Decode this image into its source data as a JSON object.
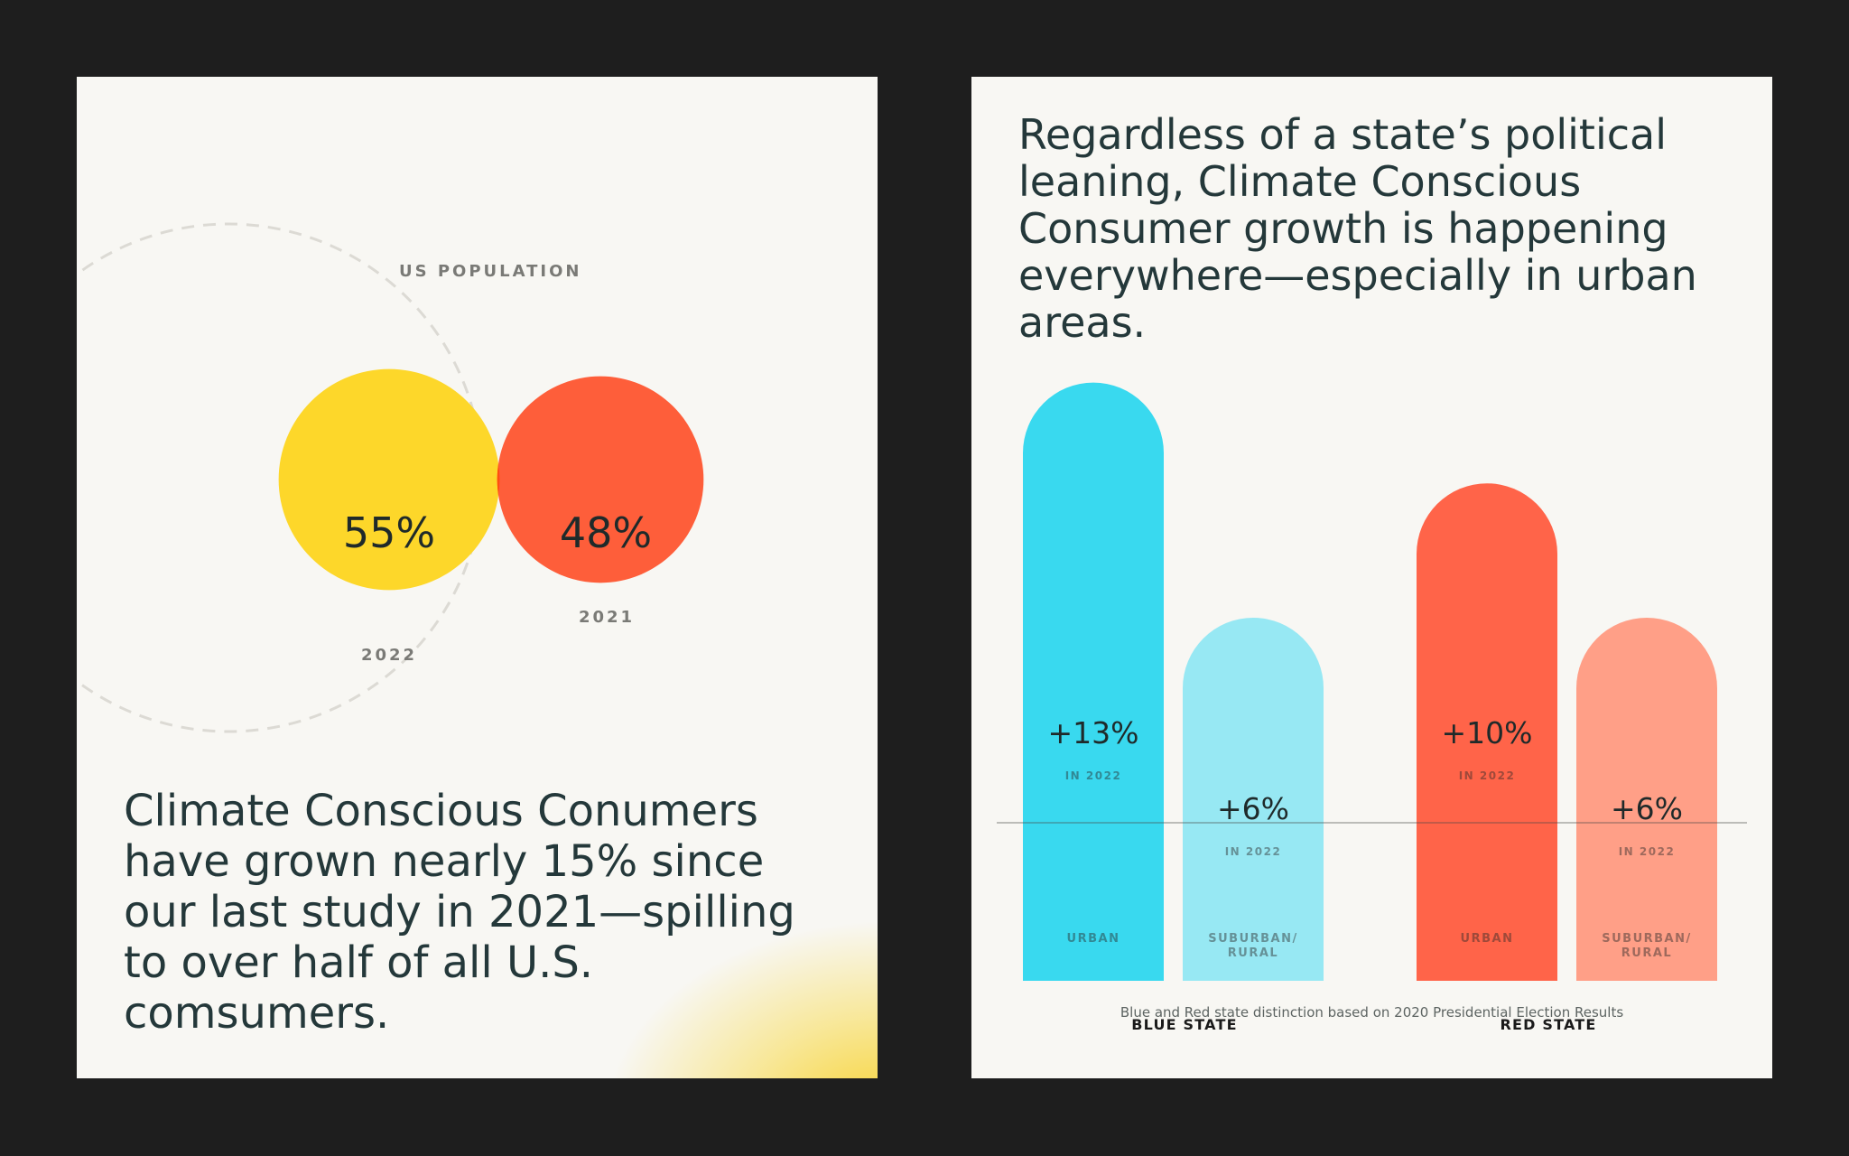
{
  "left_panel": {
    "outer_label": "US POPULATION",
    "headline": "Climate Conscious Conumers have grown nearly 15% since our last study in 2021—spilling to over half of all U.S. comsumers.",
    "colors": {
      "circle_2022": "#fdd72a",
      "circle_2021": "#fe5e3a",
      "overlap": "#ff4f0f"
    }
  },
  "right_panel": {
    "headline": "Regardless of a state’s political leaning, Climate Conscious Consumer growth is happening everywhere—especially in urban areas.",
    "footnote": "Blue and Red state distinction based on 2020 Presidential Election Results"
  },
  "chart_data": [
    {
      "type": "venn",
      "title": "US POPULATION",
      "sets": [
        {
          "name": "2022",
          "label": "55%",
          "value": 55,
          "color": "#fdd72a"
        },
        {
          "name": "2021",
          "label": "48%",
          "value": 48,
          "color": "#fe5e3a"
        }
      ]
    },
    {
      "type": "bar",
      "categories": [
        "BLUE STATE",
        "RED STATE"
      ],
      "baseline_value": 0,
      "ylim": [
        -4,
        21
      ],
      "series": [
        {
          "name": "URBAN",
          "values": [
            13,
            10
          ],
          "labels": [
            "+13%",
            "+10%"
          ],
          "sublabel": "IN 2022",
          "colors": [
            "#39d9ef",
            "#ff6449"
          ]
        },
        {
          "name": "SUBURBAN/ RURAL",
          "values": [
            6,
            6
          ],
          "labels": [
            "+6%",
            "+6%"
          ],
          "sublabel": "IN 2022",
          "colors": [
            "#97e8f3",
            "#ff9f87"
          ]
        }
      ],
      "bar_titles": [
        "URBAN",
        "SUBURBAN/",
        "RURAL"
      ]
    }
  ]
}
